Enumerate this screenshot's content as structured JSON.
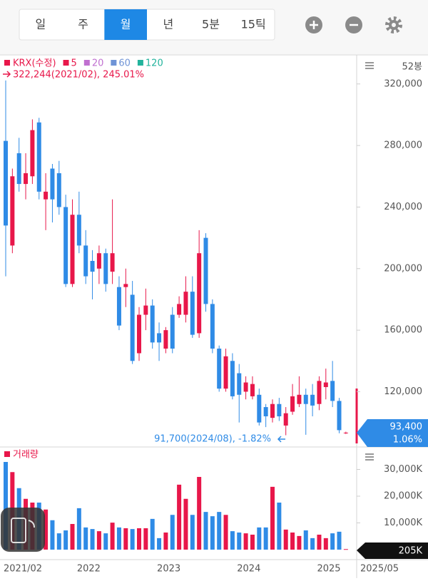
{
  "toolbar": {
    "tabs": [
      "일",
      "주",
      "월",
      "년",
      "5분",
      "15틱"
    ],
    "selected": 2
  },
  "chart_data": {
    "type": "candlestick",
    "legend": {
      "title": "KRX(수정)",
      "title_color": "#e8174a",
      "items": [
        {
          "name": "5",
          "color": "#e8174a"
        },
        {
          "name": "20",
          "color": "#c070d0"
        },
        {
          "name": "60",
          "color": "#6f93d6"
        },
        {
          "name": "120",
          "color": "#22b39c"
        }
      ]
    },
    "bar_count_label": "52봉",
    "up_color": "#e8174a",
    "down_color": "#2f8be6",
    "categories": [
      "2021/02",
      null,
      null,
      null,
      null,
      null,
      null,
      null,
      null,
      null,
      null,
      "2022",
      null,
      null,
      null,
      null,
      null,
      null,
      null,
      null,
      null,
      null,
      null,
      "2023",
      null,
      null,
      null,
      null,
      null,
      null,
      null,
      null,
      null,
      null,
      null,
      "2024",
      null,
      null,
      null,
      null,
      null,
      null,
      null,
      null,
      null,
      null,
      null,
      "2025",
      null,
      null,
      null,
      null
    ],
    "open": [
      283000,
      215000,
      275000,
      255000,
      260000,
      295000,
      245000,
      265000,
      262000,
      240000,
      190000,
      235000,
      215000,
      205000,
      200000,
      210000,
      198000,
      188000,
      188000,
      183000,
      145000,
      170000,
      176000,
      158000,
      148000,
      170000,
      170000,
      170000,
      185000,
      158000,
      220000,
      177000,
      148000,
      122000,
      140000,
      132000,
      120000,
      117000,
      118000,
      110000,
      103000,
      112000,
      98000,
      107000,
      112000,
      118000,
      118000,
      112000,
      123000,
      127000,
      114000,
      93000
    ],
    "high": [
      322244,
      265000,
      285000,
      275000,
      297000,
      298000,
      262000,
      268000,
      270000,
      248000,
      245000,
      250000,
      225000,
      212000,
      215000,
      213000,
      245000,
      195000,
      200000,
      192000,
      175000,
      187000,
      180000,
      165000,
      162000,
      175000,
      182000,
      195000,
      195000,
      225000,
      223000,
      180000,
      150000,
      148000,
      145000,
      138000,
      130000,
      130000,
      122000,
      112000,
      115000,
      116000,
      110000,
      125000,
      130000,
      122000,
      125000,
      130000,
      135000,
      140000,
      116000,
      94000
    ],
    "low": [
      195000,
      210000,
      250000,
      245000,
      255000,
      245000,
      225000,
      230000,
      235000,
      188000,
      188000,
      210000,
      190000,
      180000,
      190000,
      185000,
      190000,
      160000,
      175000,
      138000,
      140000,
      160000,
      148000,
      140000,
      145000,
      145000,
      168000,
      165000,
      155000,
      155000,
      172000,
      145000,
      120000,
      120000,
      115000,
      100000,
      115000,
      115000,
      98000,
      97000,
      100000,
      101000,
      91700,
      105000,
      110000,
      92000,
      104000,
      108000,
      115000,
      110000,
      93000,
      92500
    ],
    "close": [
      228000,
      260000,
      255000,
      262000,
      290000,
      250000,
      250000,
      245000,
      240000,
      190000,
      235000,
      215000,
      195000,
      198000,
      210000,
      190000,
      210000,
      163000,
      190000,
      140000,
      170000,
      176000,
      152000,
      152000,
      160000,
      148000,
      177000,
      185000,
      157000,
      210000,
      177000,
      148000,
      122000,
      143000,
      117000,
      118000,
      126000,
      125000,
      100000,
      104000,
      112000,
      104000,
      106000,
      117000,
      118000,
      112000,
      111000,
      127000,
      126000,
      114000,
      95000,
      93400
    ],
    "ylim": [
      85000,
      337500
    ],
    "yticks": [
      {
        "value": 320000,
        "label": "320,000"
      },
      {
        "value": 280000,
        "label": "280,000"
      },
      {
        "value": 240000,
        "label": "240,000"
      },
      {
        "value": 200000,
        "label": "200,000"
      },
      {
        "value": 160000,
        "label": "160,000"
      },
      {
        "value": 120000,
        "label": "120,000"
      }
    ],
    "annotations": {
      "high": "322,244(2021/02), 245.01%",
      "low": "91,700(2024/08), -1.82%"
    },
    "current_price": {
      "value": 93400,
      "label": "93,400",
      "change": "1.06%"
    },
    "current_date": "2025/05",
    "volume": {
      "title": "거래량",
      "values": [
        32800,
        29000,
        23000,
        19000,
        17600,
        17600,
        15000,
        11000,
        6100,
        7200,
        9600,
        15500,
        8300,
        7700,
        6900,
        6100,
        10100,
        8300,
        8000,
        7700,
        8000,
        8000,
        11500,
        4300,
        6400,
        13000,
        24300,
        19000,
        13000,
        27200,
        14100,
        12500,
        14100,
        13000,
        6900,
        6400,
        6100,
        5600,
        8300,
        8300,
        23500,
        17600,
        7500,
        6400,
        5100,
        7200,
        4300,
        5600,
        4300,
        6100,
        6700,
        205
      ],
      "ylim": [
        0,
        37000
      ],
      "yticks": [
        {
          "value": 30000,
          "label": "30,000K"
        },
        {
          "value": 20000,
          "label": "20,000K"
        },
        {
          "value": 10000,
          "label": "10,000K"
        }
      ],
      "current": {
        "value": 205,
        "label": "205K"
      }
    }
  }
}
